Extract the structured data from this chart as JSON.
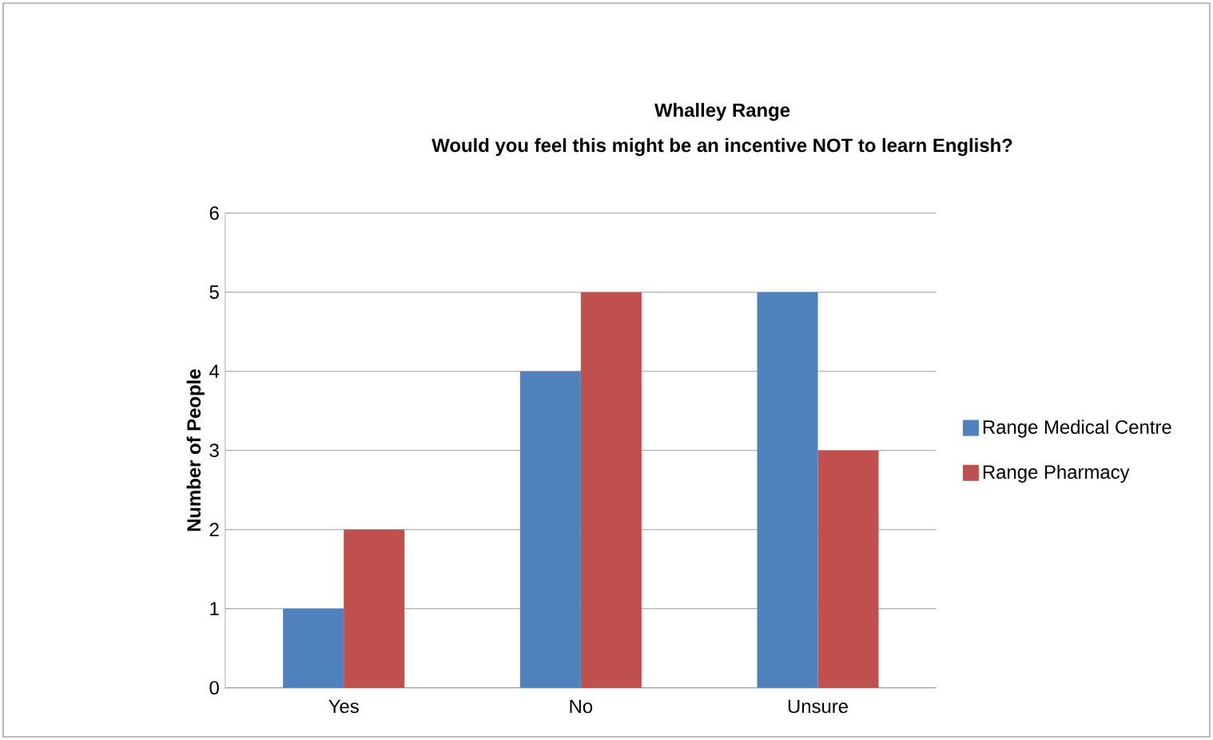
{
  "chart_data": {
    "type": "bar",
    "title": "Whalley Range",
    "subtitle": "Would you feel this might be an incentive NOT to learn English?",
    "ylabel": "Number of People",
    "categories": [
      "Yes",
      "No",
      "Unsure"
    ],
    "series": [
      {
        "name": "Range Medical Centre",
        "color": "#4f81bd",
        "values": [
          1,
          4,
          5
        ]
      },
      {
        "name": "Range Pharmacy",
        "color": "#c0504d",
        "values": [
          2,
          5,
          3
        ]
      }
    ],
    "ylim": [
      0,
      6
    ],
    "yticks": [
      0,
      1,
      2,
      3,
      4,
      5,
      6
    ],
    "grid": "y",
    "legend": "right"
  }
}
